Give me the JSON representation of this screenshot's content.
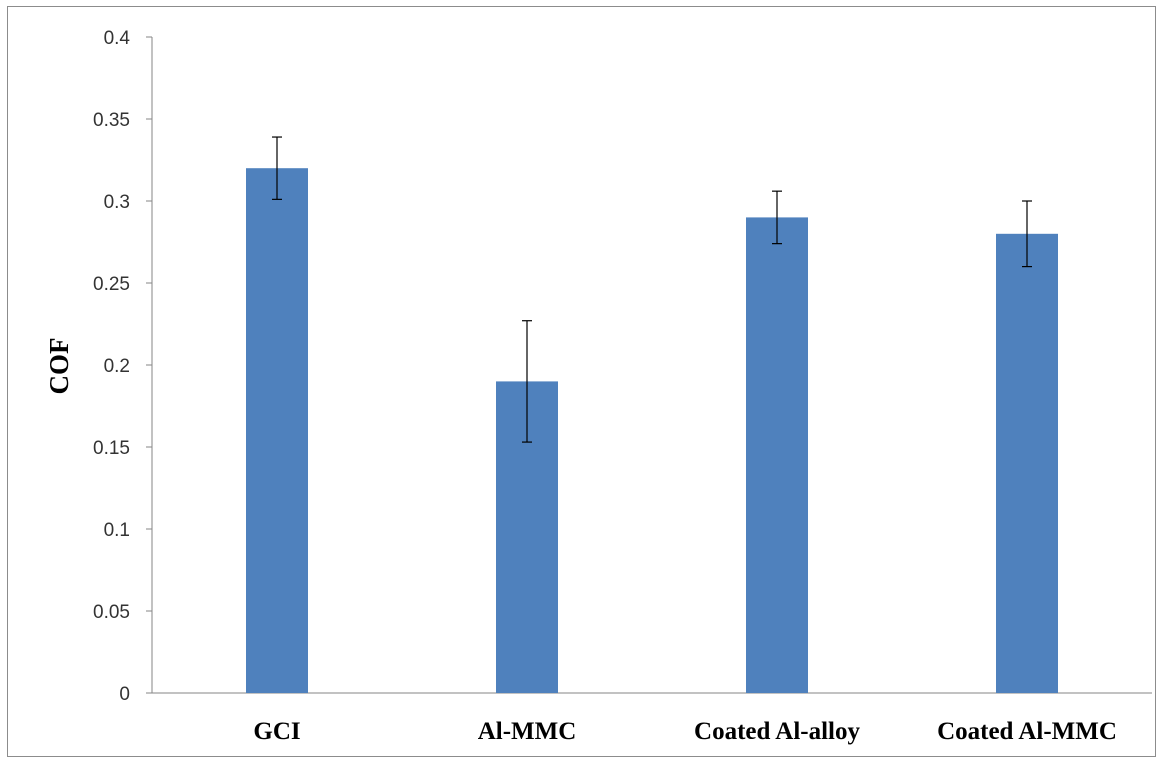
{
  "chart_data": {
    "type": "bar",
    "categories": [
      "GCI",
      "Al-MMC",
      "Coated Al-alloy",
      "Coated Al-MMC"
    ],
    "values": [
      0.32,
      0.19,
      0.29,
      0.28
    ],
    "error_plus": [
      0.019,
      0.037,
      0.016,
      0.02
    ],
    "error_minus": [
      0.019,
      0.037,
      0.016,
      0.02
    ],
    "title": "",
    "xlabel": "",
    "ylabel": "COF",
    "ylim": [
      0,
      0.4
    ],
    "yticks": [
      0,
      0.05,
      0.1,
      0.15,
      0.2,
      0.25,
      0.3,
      0.35,
      0.4
    ],
    "ytick_labels": [
      "0",
      "0.05",
      "0.1",
      "0.15",
      "0.2",
      "0.25",
      "0.3",
      "0.35",
      "0.4"
    ],
    "grid": false,
    "legend": "none",
    "bar_color": "#4f81bd",
    "axis_color": "#868686",
    "error_bar_color": "#000000"
  }
}
